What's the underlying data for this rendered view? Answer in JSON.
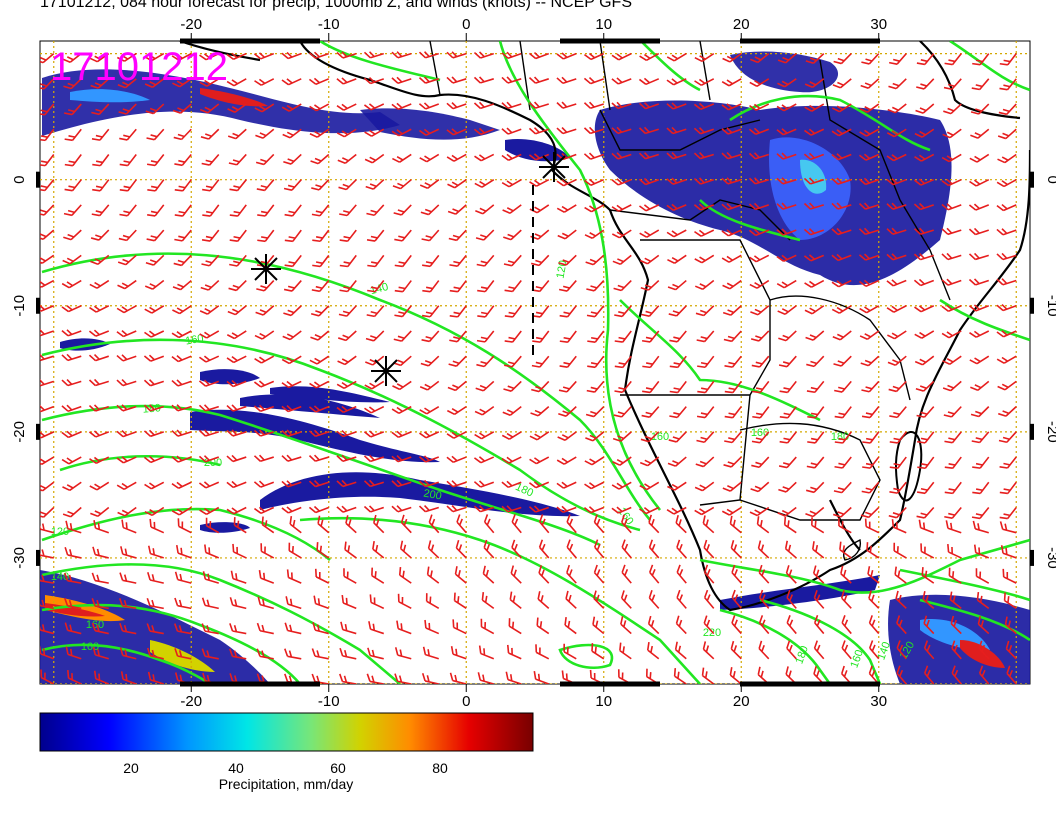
{
  "title": "17101212, 084 hour forecast for precip, 1000mb Z, and winds (knots) -- NCEP GFS",
  "stamp": "17101212",
  "map": {
    "lon_ticks": [
      "-20",
      "-10",
      "0",
      "10",
      "20",
      "30"
    ],
    "lat_ticks": [
      "0",
      "-10",
      "-20",
      "-30"
    ],
    "lon_range": [
      -31,
      41
    ],
    "lat_range": [
      -40,
      11
    ],
    "grid": true,
    "contour_labels": [
      "120",
      "140",
      "160",
      "180",
      "200",
      "200",
      "180",
      "160",
      "160",
      "160",
      "180",
      "220",
      "180",
      "160",
      "140",
      "120",
      "160",
      "160",
      "140",
      "120"
    ],
    "colors": {
      "contour": "#22e622",
      "wind_barbs": "#e61e1e",
      "grid": "#d4a800",
      "coastline": "#000000",
      "stamp": "#ff00ff",
      "precip_heavy": "#1a1aa0"
    },
    "markers": [
      "asterisk",
      "asterisk",
      "asterisk"
    ]
  },
  "colorbar": {
    "ticks": [
      "20",
      "40",
      "60",
      "80"
    ],
    "title": "Precipitation, mm/day",
    "range": [
      0,
      98
    ]
  }
}
